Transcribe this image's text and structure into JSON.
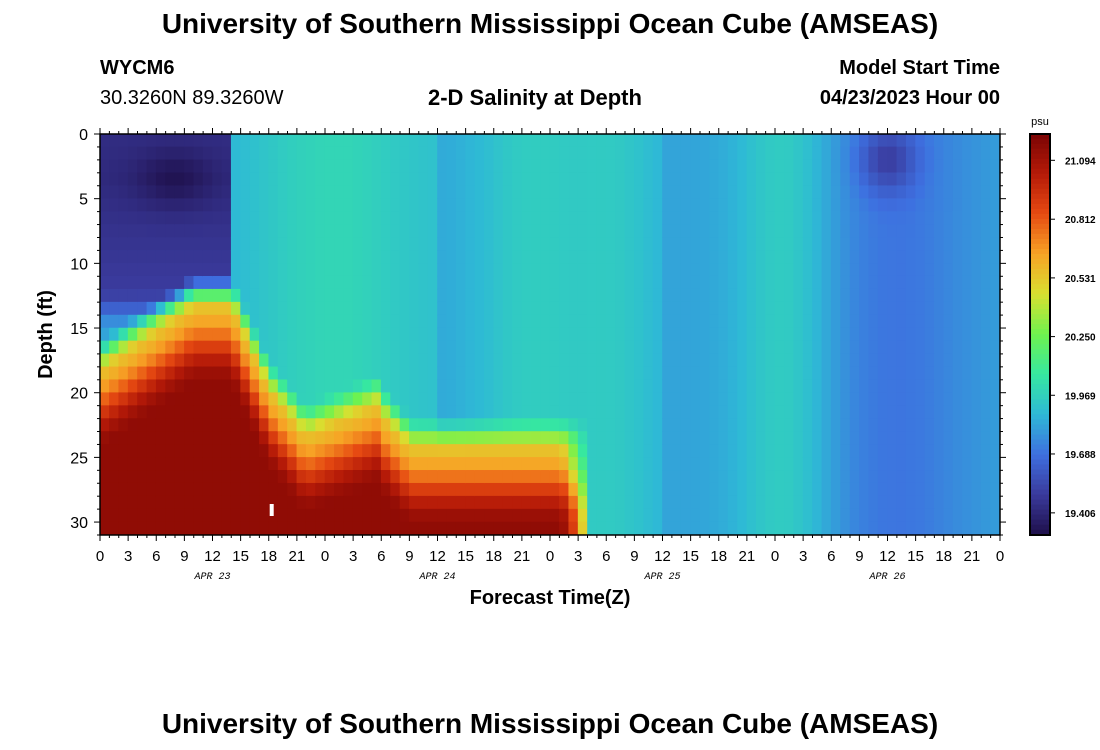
{
  "page": {
    "title_top": "University of Southern Mississippi Ocean Cube (AMSEAS)",
    "title_bottom": "University of Southern Mississippi Ocean Cube (AMSEAS)",
    "station_id": "WYCM6",
    "station_coords": "30.3260N  89.3260W",
    "plot_title": "2-D Salinity at Depth",
    "model_start_label": "Model Start Time",
    "model_start_value": "04/23/2023 Hour 00"
  },
  "chart_data": {
    "type": "heatmap",
    "title": "2-D Salinity at Depth",
    "xlabel": "Forecast Time(Z)",
    "ylabel": "Depth (ft)",
    "x_range_hours": [
      0,
      96
    ],
    "x_tick_step_hours": 3,
    "x_tick_labels": [
      "0",
      "3",
      "6",
      "9",
      "12",
      "15",
      "18",
      "21",
      "0",
      "3",
      "6",
      "9",
      "12",
      "15",
      "18",
      "21",
      "0",
      "3",
      "6",
      "9",
      "12",
      "15",
      "18",
      "21",
      "0",
      "3",
      "6",
      "9",
      "12",
      "15",
      "18",
      "21",
      "0"
    ],
    "day_labels": [
      {
        "label": "APR 23",
        "hour": 12
      },
      {
        "label": "APR 24",
        "hour": 36
      },
      {
        "label": "APR 25",
        "hour": 60
      },
      {
        "label": "APR 26",
        "hour": 84
      }
    ],
    "y_range_ft": [
      0,
      31
    ],
    "y_ticks": [
      0,
      5,
      10,
      15,
      20,
      25,
      30
    ],
    "y_tick_labels": [
      "0",
      "5",
      "10",
      "15",
      "20",
      "25",
      "30"
    ],
    "colorbar": {
      "unit": "psu",
      "min": 19.3,
      "max": 21.22,
      "tick_values": [
        21.094,
        20.812,
        20.531,
        20.25,
        19.969,
        19.688,
        19.406
      ],
      "tick_labels": [
        "21.094",
        "20.812",
        "20.531",
        "20.250",
        "19.969",
        "19.688",
        "19.406"
      ],
      "colors": [
        "#1e0f4a",
        "#3a3a9c",
        "#3e6fe0",
        "#2eb9d6",
        "#36e8a0",
        "#6ff24e",
        "#d8e030",
        "#f7a325",
        "#e64a12",
        "#b51a08",
        "#7a0404"
      ]
    },
    "features": {
      "low_salinity_core": {
        "hour": 9,
        "depth_ft": 3.5,
        "value": 19.35
      },
      "high_salinity_bottom_layer": {
        "value": 21.2,
        "depth_range_ft": [
          16,
          31
        ],
        "hours": [
          0,
          21
        ]
      },
      "front_time_hour": 29,
      "surface_background": 19.95,
      "late_period_surface_low": {
        "hour": 84,
        "depth_ft": 2,
        "value": 19.6
      }
    }
  }
}
